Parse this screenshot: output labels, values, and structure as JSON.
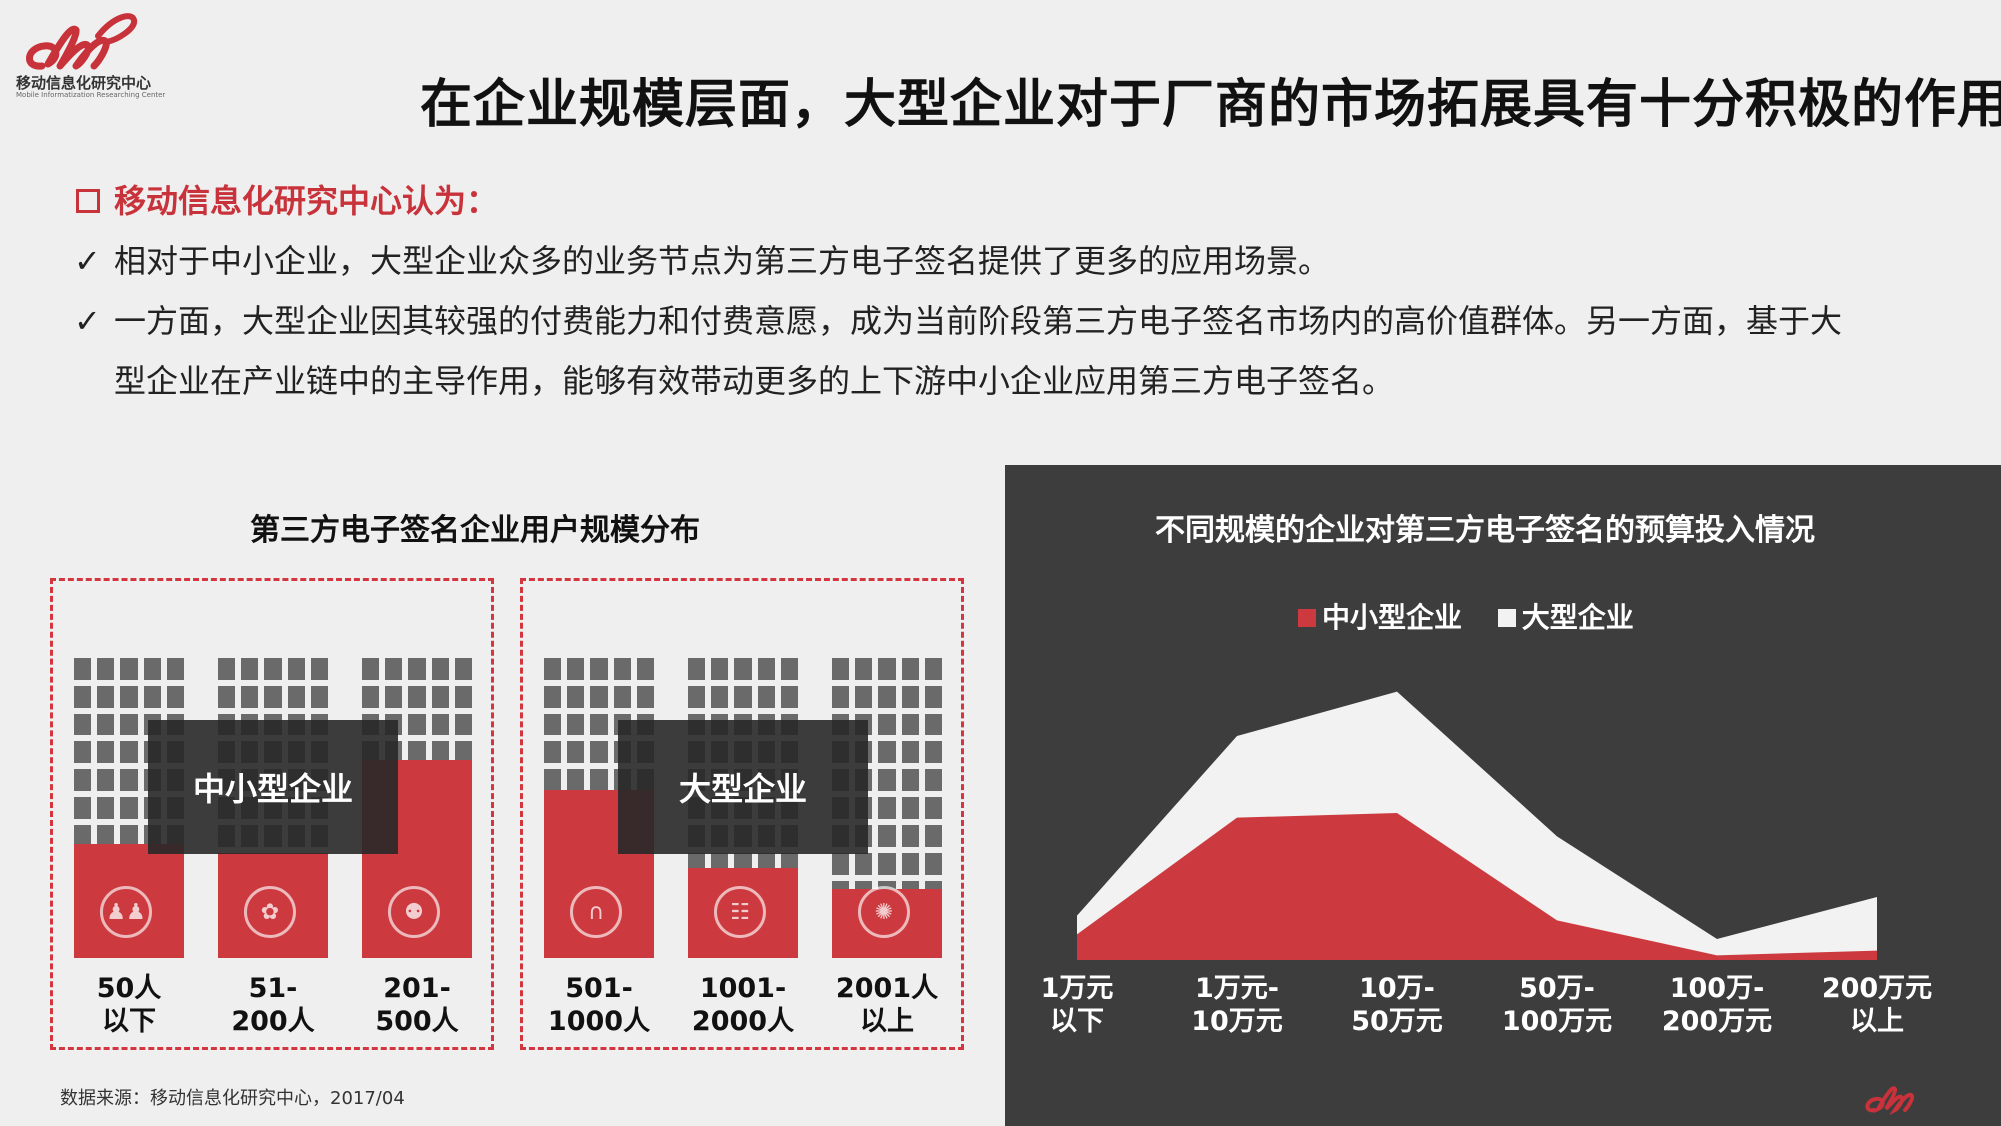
{
  "logo": {
    "name": "移动信息化研究中心",
    "sub": "Mobile Informatization Researching Center"
  },
  "title": "在企业规模层面，大型企业对于厂商的市场拓展具有十分积极的作用",
  "opinion": {
    "heading": "移动信息化研究中心认为：",
    "check": "✓",
    "bullets": [
      [
        "相对于中小企业，大型企业众多的业务节点为第三方电子签名提供了更多的应用场景。"
      ],
      [
        "一方面，大型企业因其较强的付费能力和付费意愿，成为当前阶段第三方电子签名市场内的高价值群体。另一方面，基于大",
        "型企业在产业链中的主导作用，能够有效带动更多的上下游中小企业应用第三方电子签名。"
      ]
    ]
  },
  "source": "数据来源：移动信息化研究中心，2017/04",
  "colors": {
    "red": "#cc3a40",
    "grid": "#6a6a6a",
    "dark": "#3d3d3e",
    "white_area": "#f2f2f2"
  },
  "chart_data": [
    {
      "type": "bar",
      "title": "第三方电子签名企业用户规模分布",
      "categories": [
        "50人\n以下",
        "51-\n200人",
        "201-\n500人",
        "501-\n1000人",
        "1001-\n2000人",
        "2001人\n以上"
      ],
      "values": [
        26,
        23,
        54,
        44,
        18,
        11
      ],
      "ylim": [
        0,
        100
      ],
      "groups": [
        {
          "label": "中小型企业",
          "indices": [
            0,
            1,
            2
          ]
        },
        {
          "label": "大型企业",
          "indices": [
            3,
            4,
            5
          ]
        }
      ],
      "icons": [
        "meeting-icon",
        "team-icon",
        "org-icon",
        "bridge-icon",
        "crowd-icon",
        "network-icon"
      ]
    },
    {
      "type": "area",
      "title": "不同规模的企业对第三方电子签名的预算投入情况",
      "categories": [
        "1万元\n以下",
        "1万元-\n10万元",
        "10万-\n50万元",
        "50万-\n100万元",
        "100万-\n200万元",
        "200万元\n以上"
      ],
      "series": [
        {
          "name": "中小型企业",
          "color": "#cc3a40",
          "values": [
            11,
            61,
            63,
            17,
            2,
            4
          ]
        },
        {
          "name": "大型企业",
          "color": "#f2f2f2",
          "values": [
            19,
            96,
            115,
            53,
            9,
            27
          ]
        }
      ],
      "ylim": [
        0,
        120
      ],
      "legend": "top-center"
    }
  ]
}
